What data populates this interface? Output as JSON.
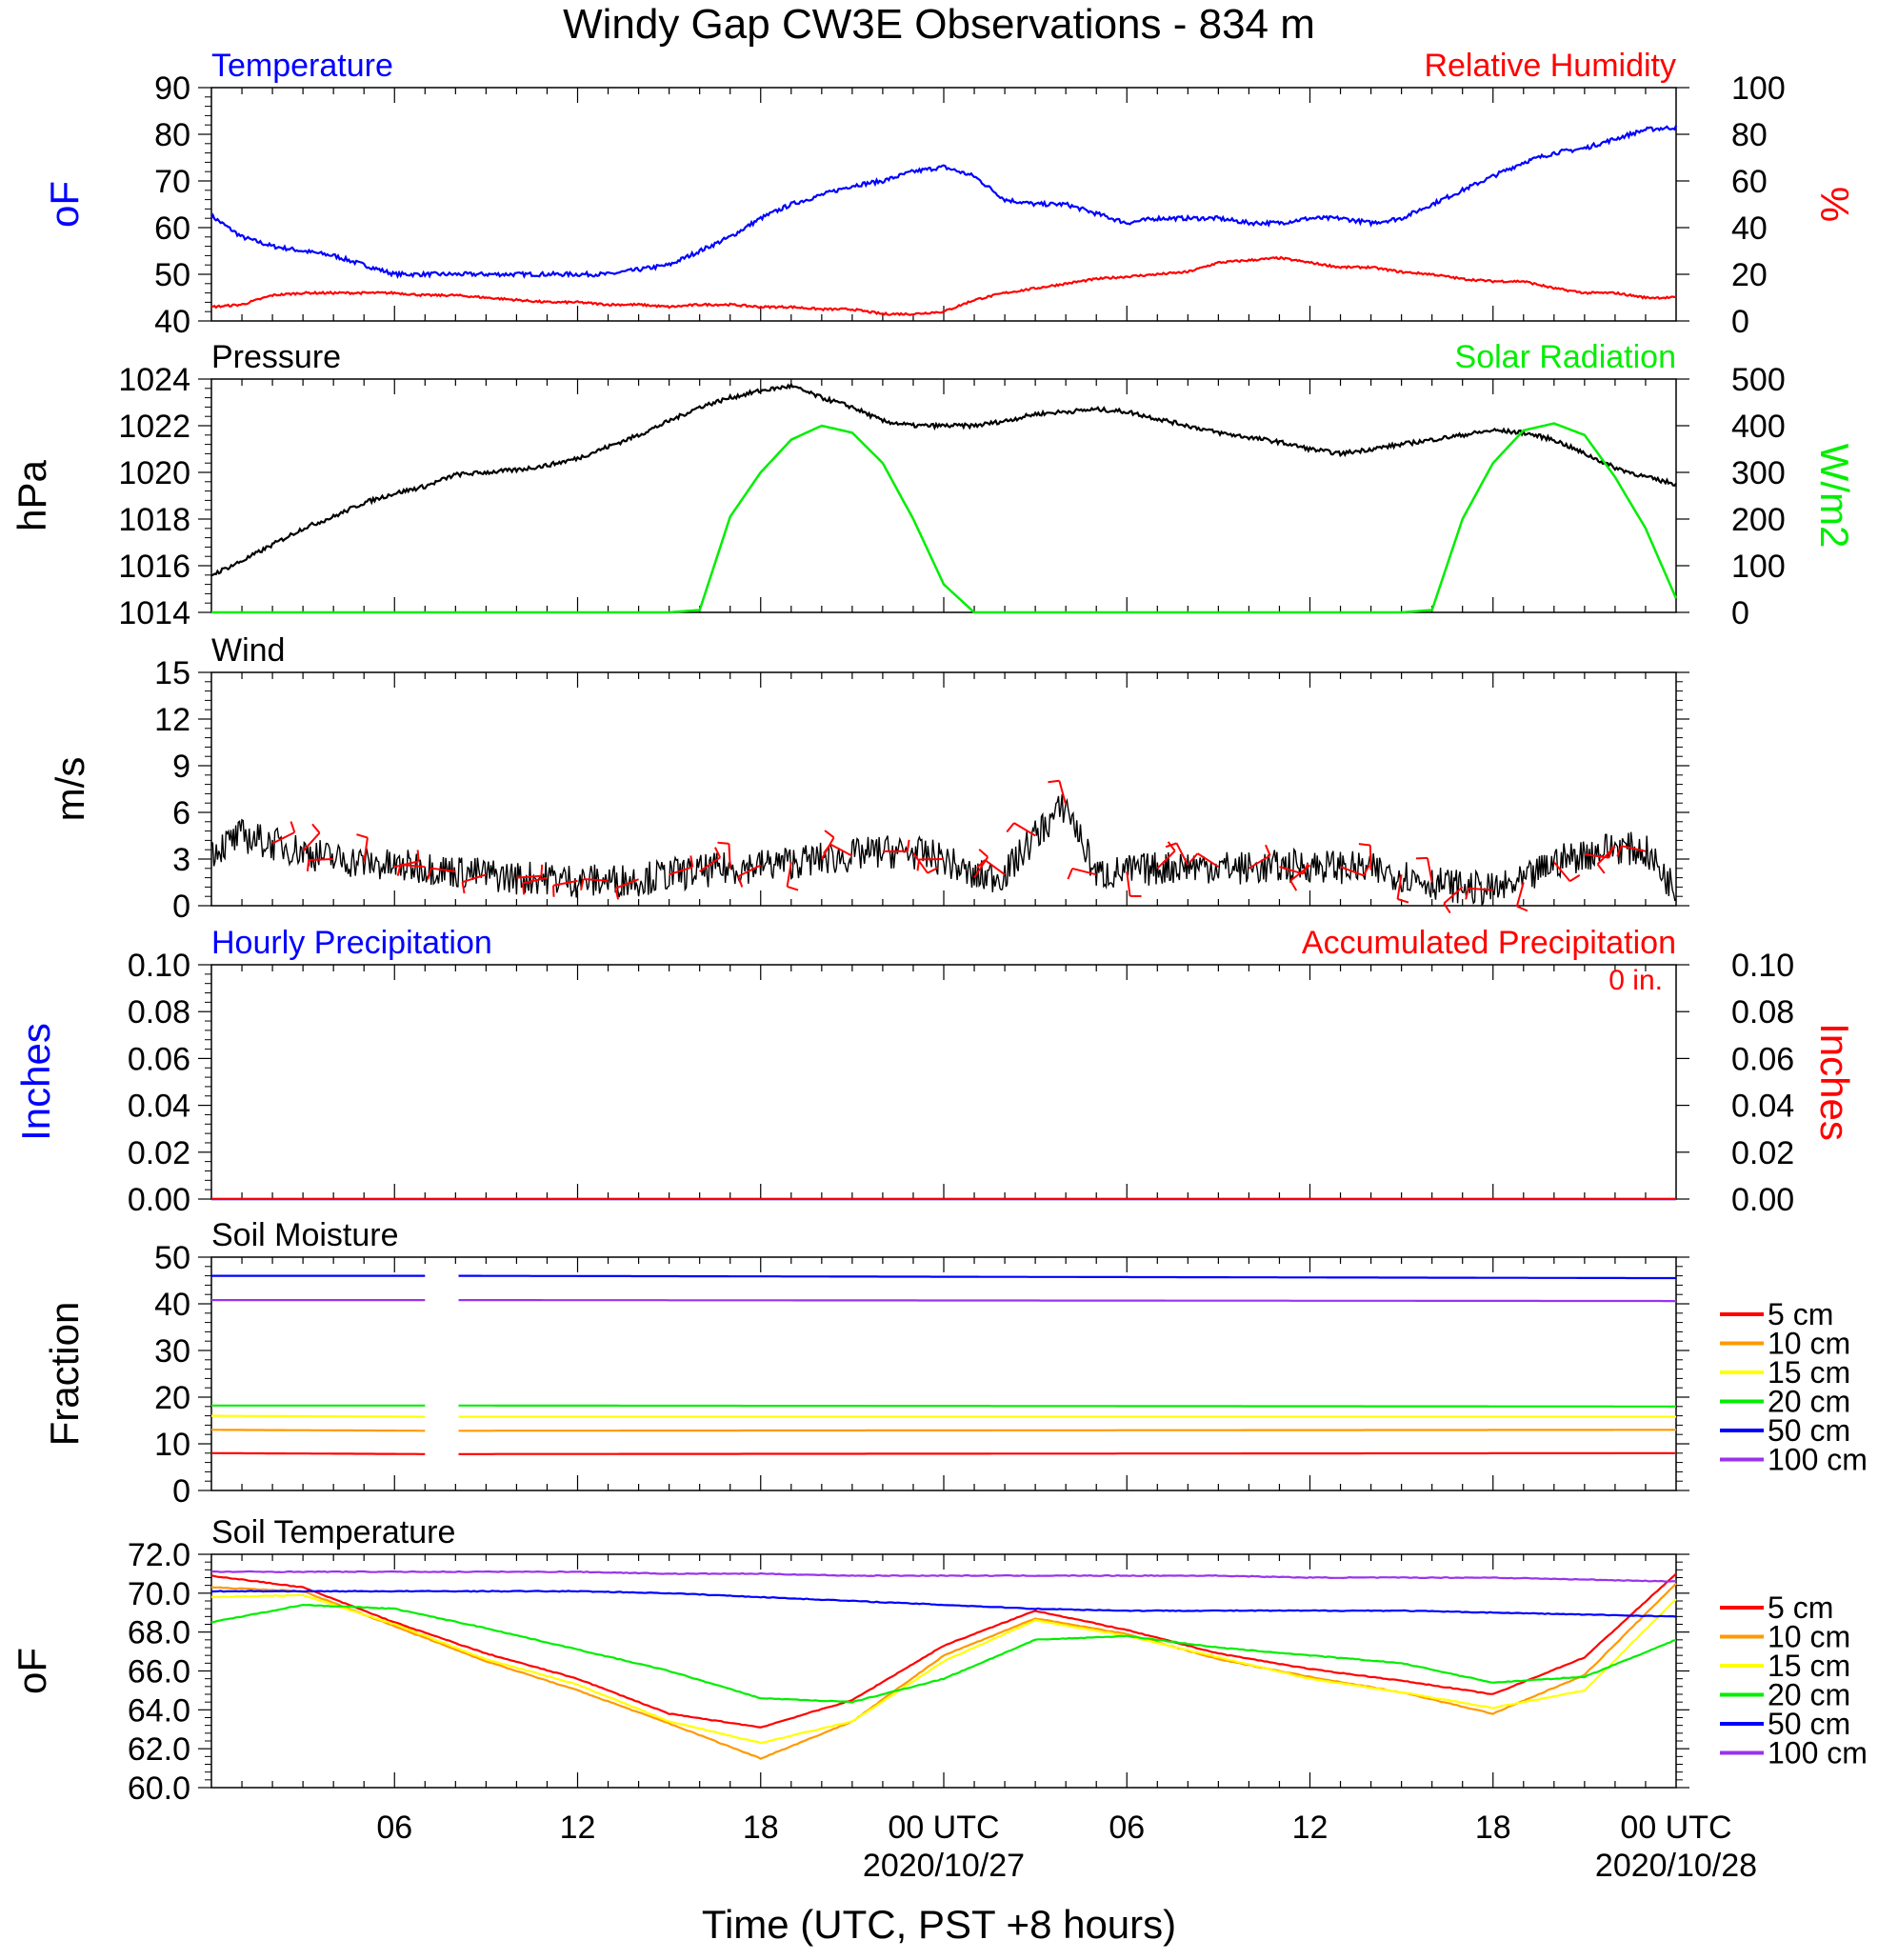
{
  "title": "Windy Gap CW3E Observations - 834 m",
  "x_axis": {
    "label": "Time (UTC, PST +8 hours)",
    "range_hours": [
      0,
      48
    ],
    "major_ticks": [
      {
        "h": 6,
        "label": "06",
        "date": ""
      },
      {
        "h": 12,
        "label": "12",
        "date": ""
      },
      {
        "h": 18,
        "label": "18",
        "date": ""
      },
      {
        "h": 24,
        "label": "00 UTC",
        "date": "2020/10/27"
      },
      {
        "h": 30,
        "label": "06",
        "date": ""
      },
      {
        "h": 36,
        "label": "12",
        "date": ""
      },
      {
        "h": 42,
        "label": "18",
        "date": ""
      },
      {
        "h": 48,
        "label": "00 UTC",
        "date": "2020/10/28"
      }
    ]
  },
  "colors": {
    "temperature": "#0000ff",
    "humidity": "#ff0000",
    "pressure": "#000000",
    "solar": "#00ee00",
    "wind": "#000000",
    "barb": "#ff0000",
    "hourly_precip": "#0000ff",
    "accum_precip": "#ff0000"
  },
  "depth_legend": [
    {
      "label": "5 cm",
      "color": "#ff0000"
    },
    {
      "label": "10 cm",
      "color": "#ff9900"
    },
    {
      "label": "15 cm",
      "color": "#ffff00"
    },
    {
      "label": "20 cm",
      "color": "#00ee00"
    },
    {
      "label": "50 cm",
      "color": "#0000ff"
    },
    {
      "label": "100 cm",
      "color": "#9933ee"
    }
  ],
  "panels": {
    "temp_rh": {
      "left_title": "Temperature",
      "right_title": "Relative Humidity",
      "left_unit": "oF",
      "right_unit": "%",
      "left_ticks": [
        "40",
        "50",
        "60",
        "70",
        "80",
        "90"
      ],
      "right_ticks": [
        "0",
        "20",
        "40",
        "60",
        "80",
        "100"
      ]
    },
    "pressure_solar": {
      "left_title": "Pressure",
      "right_title": "Solar Radiation",
      "left_unit": "hPa",
      "right_unit": "W/m2",
      "left_ticks": [
        "1014",
        "1016",
        "1018",
        "1020",
        "1022",
        "1024"
      ],
      "right_ticks": [
        "0",
        "100",
        "200",
        "300",
        "400",
        "500"
      ]
    },
    "wind": {
      "left_title": "Wind",
      "left_unit": "m/s",
      "left_ticks": [
        "0",
        "3",
        "6",
        "9",
        "12",
        "15"
      ]
    },
    "precip": {
      "left_title": "Hourly Precipitation",
      "right_title": "Accumulated Precipitation",
      "left_unit": "Inches",
      "right_unit": "Inches",
      "accum_label": "0 in.",
      "left_ticks": [
        "0.00",
        "0.02",
        "0.04",
        "0.06",
        "0.08",
        "0.10"
      ],
      "right_ticks": [
        "0.00",
        "0.02",
        "0.04",
        "0.06",
        "0.08",
        "0.10"
      ]
    },
    "soil_moisture": {
      "left_title": "Soil Moisture",
      "left_unit": "Fraction",
      "left_ticks": [
        "0",
        "10",
        "20",
        "30",
        "40",
        "50"
      ]
    },
    "soil_temp": {
      "left_title": "Soil Temperature",
      "left_unit": "oF",
      "left_ticks": [
        "60.0",
        "62.0",
        "64.0",
        "66.0",
        "68.0",
        "70.0",
        "72.0"
      ]
    }
  },
  "chart_data": [
    {
      "type": "line",
      "name": "Temperature and Relative Humidity",
      "x_hours": [
        0,
        1,
        2,
        3,
        4,
        5,
        6,
        7,
        8,
        9,
        10,
        11,
        12,
        13,
        14,
        15,
        16,
        17,
        18,
        19,
        20,
        21,
        22,
        23,
        24,
        25,
        26,
        27,
        28,
        29,
        30,
        31,
        32,
        33,
        34,
        35,
        36,
        37,
        38,
        39,
        40,
        41,
        42,
        43,
        44,
        45,
        46,
        47,
        48
      ],
      "series": [
        {
          "name": "Temperature",
          "axis": "left",
          "ylim": [
            40,
            90
          ],
          "values": [
            62.5,
            58,
            56,
            55,
            54,
            52,
            50,
            50,
            50,
            50,
            50,
            50,
            50,
            50,
            51,
            52,
            55,
            58,
            62,
            65,
            67,
            69,
            70,
            72,
            73,
            71,
            66,
            65,
            65,
            63,
            61,
            62,
            62,
            62,
            61,
            61,
            62,
            62,
            61,
            62,
            65,
            68,
            71,
            74,
            76,
            77,
            79,
            81,
            81.5
          ]
        },
        {
          "name": "Relative Humidity",
          "axis": "right",
          "ylim": [
            0,
            100
          ],
          "values": [
            6,
            7,
            11,
            12,
            12,
            12,
            12,
            11,
            11,
            10,
            9,
            8,
            8,
            7,
            7,
            6,
            7,
            7,
            6,
            6,
            5,
            5,
            3,
            3,
            4,
            9,
            12,
            14,
            16,
            18,
            19,
            20,
            21,
            25,
            26,
            27,
            25,
            23,
            23,
            21,
            20,
            18,
            17,
            17,
            14,
            12,
            12,
            10,
            10
          ]
        }
      ]
    },
    {
      "type": "line",
      "name": "Pressure and Solar Radiation",
      "x_hours": [
        0,
        1,
        2,
        3,
        4,
        5,
        6,
        7,
        8,
        9,
        10,
        11,
        12,
        13,
        14,
        15,
        16,
        17,
        18,
        19,
        20,
        21,
        22,
        23,
        24,
        25,
        26,
        27,
        28,
        29,
        30,
        31,
        32,
        33,
        34,
        35,
        36,
        37,
        38,
        39,
        40,
        41,
        42,
        43,
        44,
        45,
        46,
        47,
        48
      ],
      "series": [
        {
          "name": "Pressure",
          "axis": "left",
          "ylim": [
            1014,
            1024
          ],
          "unit": "hPa",
          "values": [
            1015.6,
            1016.2,
            1016.9,
            1017.6,
            1018.1,
            1018.7,
            1019.1,
            1019.4,
            1019.9,
            1020.0,
            1020.1,
            1020.3,
            1020.6,
            1021.1,
            1021.6,
            1022.2,
            1022.8,
            1023.2,
            1023.5,
            1023.7,
            1023.2,
            1022.8,
            1022.2,
            1022.0,
            1022.0,
            1022.0,
            1022.2,
            1022.5,
            1022.6,
            1022.7,
            1022.6,
            1022.3,
            1022.0,
            1021.7,
            1021.5,
            1021.3,
            1021.0,
            1020.8,
            1021.0,
            1021.2,
            1021.4,
            1021.6,
            1021.8,
            1021.7,
            1021.4,
            1020.8,
            1020.2,
            1019.8,
            1019.5
          ]
        },
        {
          "name": "Solar Radiation",
          "axis": "right",
          "ylim": [
            0,
            500
          ],
          "unit": "W/m2",
          "values": [
            0,
            0,
            0,
            0,
            0,
            0,
            0,
            0,
            0,
            0,
            0,
            0,
            0,
            0,
            0,
            0,
            5,
            205,
            300,
            370,
            400,
            385,
            320,
            200,
            60,
            0,
            0,
            0,
            0,
            0,
            0,
            0,
            0,
            0,
            0,
            0,
            0,
            0,
            0,
            0,
            5,
            200,
            320,
            390,
            405,
            380,
            290,
            180,
            30
          ]
        }
      ]
    },
    {
      "type": "line",
      "name": "Wind",
      "x_hours": [
        0,
        1,
        2,
        3,
        4,
        5,
        6,
        7,
        8,
        9,
        10,
        11,
        12,
        13,
        14,
        15,
        16,
        17,
        18,
        19,
        20,
        21,
        22,
        23,
        24,
        25,
        26,
        27,
        28,
        29,
        30,
        31,
        32,
        33,
        34,
        35,
        36,
        37,
        38,
        39,
        40,
        41,
        42,
        43,
        44,
        45,
        46,
        47,
        48
      ],
      "series": [
        {
          "name": "Wind speed",
          "ylim": [
            0,
            15
          ],
          "unit": "m/s",
          "values": [
            3.5,
            4.5,
            4.0,
            3.5,
            3.0,
            2.8,
            2.5,
            2.5,
            2.2,
            2.0,
            1.8,
            1.8,
            1.6,
            1.6,
            1.7,
            2.0,
            2.2,
            2.4,
            2.6,
            2.8,
            3.0,
            3.2,
            3.5,
            3.4,
            3.0,
            1.8,
            2.0,
            4.5,
            6.5,
            2.0,
            2.2,
            2.4,
            2.6,
            2.5,
            2.4,
            2.5,
            2.6,
            2.5,
            2.3,
            2.0,
            1.5,
            1.2,
            1.0,
            1.5,
            2.8,
            3.3,
            3.8,
            3.5,
            1.0
          ]
        }
      ]
    },
    {
      "type": "line",
      "name": "Precipitation",
      "series": [
        {
          "name": "Hourly Precipitation",
          "axis": "left",
          "ylim": [
            0,
            0.1
          ],
          "values": [
            0,
            0
          ]
        },
        {
          "name": "Accumulated Precipitation",
          "axis": "right",
          "ylim": [
            0,
            0.1
          ],
          "values": [
            0,
            0
          ]
        }
      ]
    },
    {
      "type": "line",
      "name": "Soil Moisture",
      "x_hours": [
        0,
        7,
        8,
        48
      ],
      "gap_hours": [
        7,
        8
      ],
      "series": [
        {
          "name": "5 cm",
          "ylim": [
            0,
            50
          ],
          "values": [
            8,
            7.8,
            7.8,
            8
          ]
        },
        {
          "name": "10 cm",
          "ylim": [
            0,
            50
          ],
          "values": [
            13,
            12.8,
            12.8,
            13
          ]
        },
        {
          "name": "15 cm",
          "ylim": [
            0,
            50
          ],
          "values": [
            16,
            15.8,
            15.8,
            15.8
          ]
        },
        {
          "name": "20 cm",
          "ylim": [
            0,
            50
          ],
          "values": [
            18.2,
            18.2,
            18.2,
            18
          ]
        },
        {
          "name": "50 cm",
          "ylim": [
            0,
            50
          ],
          "values": [
            46,
            46,
            46,
            45.5
          ]
        },
        {
          "name": "100 cm",
          "ylim": [
            0,
            50
          ],
          "values": [
            40.8,
            40.8,
            40.8,
            40.6
          ]
        }
      ]
    },
    {
      "type": "line",
      "name": "Soil Temperature",
      "x_hours": [
        0,
        3,
        6,
        9,
        12,
        15,
        18,
        21,
        24,
        27,
        30,
        33,
        36,
        39,
        42,
        45,
        48
      ],
      "series": [
        {
          "name": "5 cm",
          "ylim": [
            60,
            72
          ],
          "values": [
            70.9,
            70.3,
            68.5,
            66.9,
            65.6,
            63.8,
            63.1,
            64.5,
            67.3,
            69.1,
            68.1,
            66.9,
            66.1,
            65.5,
            64.8,
            66.7,
            71.0
          ]
        },
        {
          "name": "10 cm",
          "ylim": [
            60,
            72
          ],
          "values": [
            70.3,
            70.1,
            68.3,
            66.5,
            65.0,
            63.3,
            61.5,
            63.4,
            66.8,
            68.7,
            67.9,
            66.6,
            65.7,
            64.9,
            63.8,
            65.8,
            70.5
          ]
        },
        {
          "name": "15 cm",
          "ylim": [
            60,
            72
          ],
          "values": [
            69.8,
            69.9,
            68.4,
            66.6,
            65.3,
            63.4,
            62.3,
            63.4,
            66.5,
            68.6,
            67.8,
            66.7,
            65.6,
            64.9,
            64.1,
            65.0,
            69.7
          ]
        },
        {
          "name": "20 cm",
          "ylim": [
            60,
            72
          ],
          "values": [
            68.5,
            69.4,
            69.2,
            68.2,
            67.1,
            66.0,
            64.6,
            64.4,
            65.6,
            67.6,
            67.8,
            67.2,
            66.8,
            66.4,
            65.4,
            65.7,
            67.6
          ]
        },
        {
          "name": "50 cm",
          "ylim": [
            60,
            72
          ],
          "values": [
            70.1,
            70.1,
            70.1,
            70.1,
            70.1,
            70.0,
            69.8,
            69.6,
            69.4,
            69.2,
            69.1,
            69.1,
            69.1,
            69.1,
            69.0,
            68.9,
            68.8
          ]
        },
        {
          "name": "100 cm",
          "ylim": [
            60,
            72
          ],
          "values": [
            71.1,
            71.1,
            71.1,
            71.1,
            71.1,
            71.0,
            71.0,
            70.9,
            70.9,
            70.9,
            70.9,
            70.9,
            70.8,
            70.8,
            70.8,
            70.7,
            70.6
          ]
        }
      ]
    }
  ]
}
